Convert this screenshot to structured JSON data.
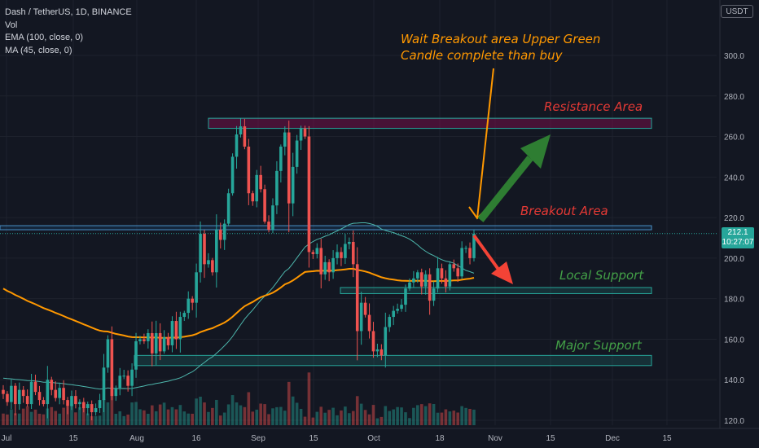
{
  "header": {
    "symbol_line": "Dash / TetherUS, 1D, BINANCE",
    "volume_line": "Vol",
    "ema_line": "EMA (100, close, 0)",
    "ma_line": "MA (45, close, 0)"
  },
  "currency_button": "USDT",
  "last_price": {
    "value": "212.1",
    "countdown": "10:27:07"
  },
  "colors": {
    "up": "#26a69a",
    "down": "#ef5350",
    "ema": "#ff9800",
    "ma": "#4db6ac",
    "background": "#131722"
  },
  "annotations": {
    "instruction_line1": "Wait Breakout area Upper Green",
    "instruction_line2": "Candle complete than buy",
    "resistance_label": "Resistance Area",
    "breakout_label": "Breakout Area",
    "local_support_label": "Local Support",
    "major_support_label": "Major Support"
  },
  "chart_data": {
    "type": "candlestick",
    "y_axis": {
      "min": 118,
      "max": 322,
      "ticks": [
        "120.0",
        "140.0",
        "160.0",
        "180.0",
        "200.0",
        "220.0",
        "240.0",
        "260.0",
        "280.0",
        "300.0"
      ]
    },
    "x_axis": {
      "ticks": [
        "Jul",
        "15",
        "Aug",
        "16",
        "Sep",
        "15",
        "Oct",
        "18",
        "Nov",
        "15",
        "Dec",
        "15"
      ]
    },
    "zones": [
      {
        "name": "Resistance Area",
        "low": 264,
        "high": 269
      },
      {
        "name": "Breakout Area",
        "low": 214,
        "high": 216
      },
      {
        "name": "Local Support",
        "low": 182.5,
        "high": 185.5
      },
      {
        "name": "Major Support",
        "low": 147,
        "high": 152
      }
    ],
    "close_prices": [
      133,
      129,
      137,
      128,
      135,
      132,
      128,
      139,
      134,
      130,
      128,
      140,
      135,
      131,
      136,
      130,
      127,
      132,
      128,
      129,
      126,
      128,
      124,
      126,
      130,
      146,
      160,
      132,
      136,
      142,
      142,
      137,
      145,
      159,
      160,
      159,
      163,
      153,
      163,
      154,
      161,
      157,
      169,
      160,
      171,
      173,
      180,
      178,
      193,
      212,
      197,
      199,
      193,
      214,
      209,
      217,
      232,
      250,
      261,
      265,
      255,
      232,
      228,
      241,
      234,
      218,
      214,
      226,
      243,
      255,
      262,
      227,
      245,
      258,
      264,
      260,
      203,
      202,
      205,
      192,
      198,
      193,
      200,
      203,
      200,
      207,
      208,
      197,
      164,
      178,
      172,
      164,
      154,
      155,
      152,
      166,
      171,
      174,
      175,
      177,
      185,
      188,
      190,
      193,
      186,
      192,
      179,
      185,
      195,
      190,
      186,
      197,
      195,
      191,
      205,
      205,
      200,
      212
    ]
  }
}
